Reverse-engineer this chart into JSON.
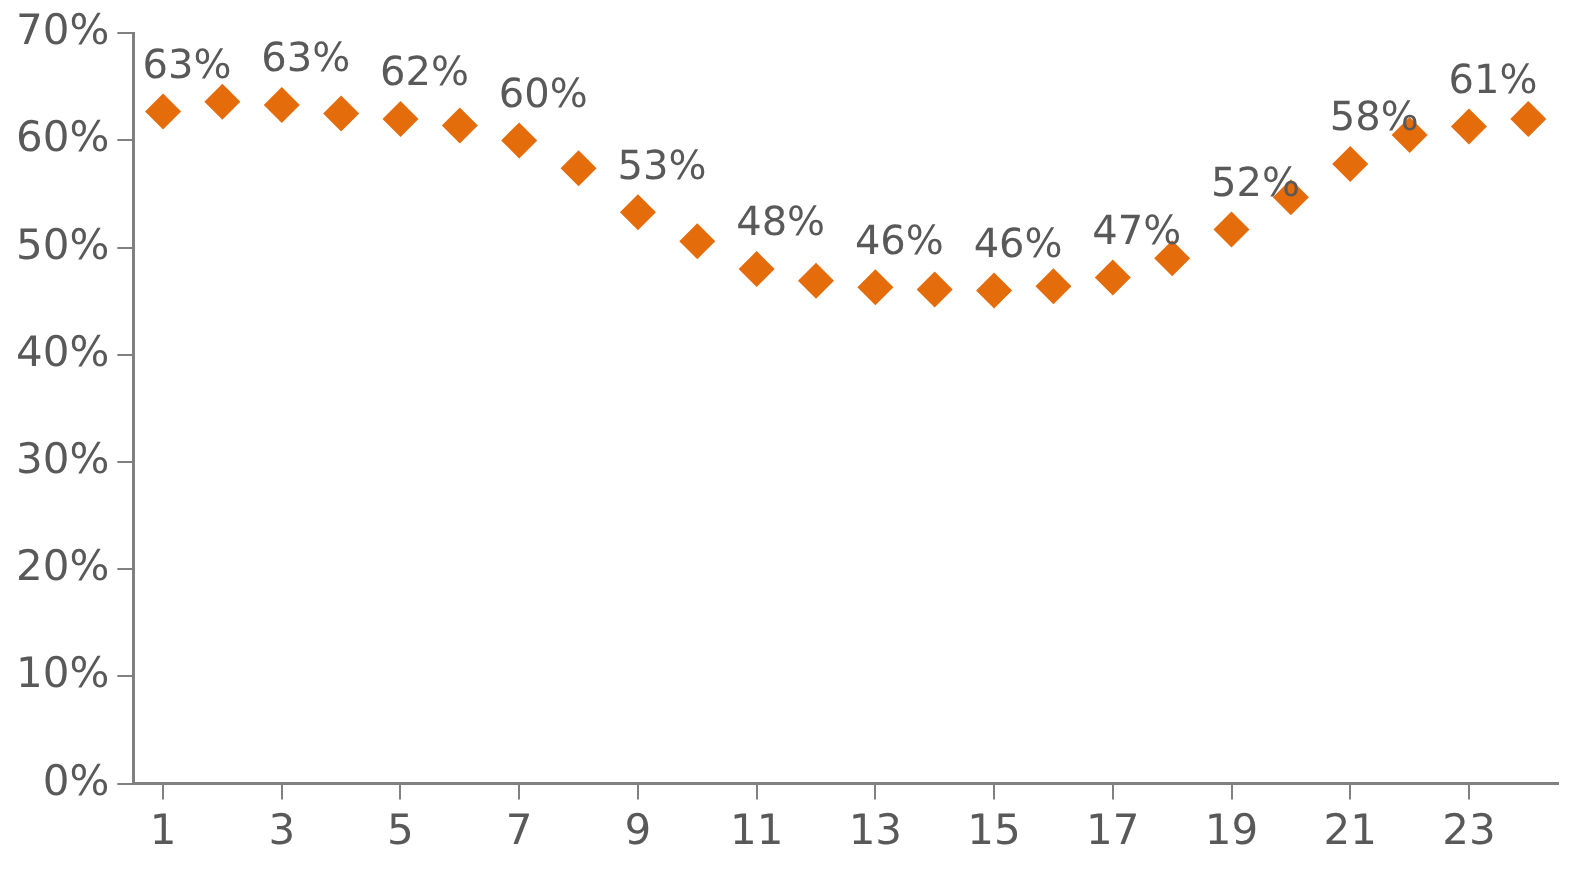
{
  "chart_data": {
    "type": "scatter",
    "x": [
      1,
      2,
      3,
      4,
      5,
      6,
      7,
      8,
      9,
      10,
      11,
      12,
      13,
      14,
      15,
      16,
      17,
      18,
      19,
      20,
      21,
      22,
      23,
      24
    ],
    "xlim": [
      0.5,
      24.5
    ],
    "xticks": [
      1,
      3,
      5,
      7,
      9,
      11,
      13,
      15,
      17,
      19,
      21,
      23
    ],
    "series": [
      {
        "color": "#e46c0a",
        "values": [
          62.7,
          63.6,
          63.3,
          62.5,
          62.0,
          61.4,
          60.0,
          57.4,
          53.3,
          50.6,
          48.0,
          46.9,
          46.3,
          46.1,
          46.0,
          46.4,
          47.2,
          49.0,
          51.7,
          54.7,
          57.8,
          60.5,
          61.3,
          62.0
        ],
        "value_labels": [
          "63%",
          null,
          "63%",
          null,
          "62%",
          null,
          "60%",
          null,
          "53%",
          null,
          "48%",
          null,
          "46%",
          null,
          "46%",
          null,
          "47%",
          null,
          "52%",
          null,
          "58%",
          null,
          "61%",
          null
        ]
      }
    ],
    "ylim": [
      0,
      70
    ],
    "yticks": [
      {
        "value": 0,
        "label": "0%"
      },
      {
        "value": 10,
        "label": "10%"
      },
      {
        "value": 20,
        "label": "20%"
      },
      {
        "value": 30,
        "label": "30%"
      },
      {
        "value": 40,
        "label": "40%"
      },
      {
        "value": 50,
        "label": "50%"
      },
      {
        "value": 60,
        "label": "60%"
      },
      {
        "value": 70,
        "label": "70%"
      }
    ],
    "grid": false,
    "legend": false,
    "marker": "diamond"
  }
}
